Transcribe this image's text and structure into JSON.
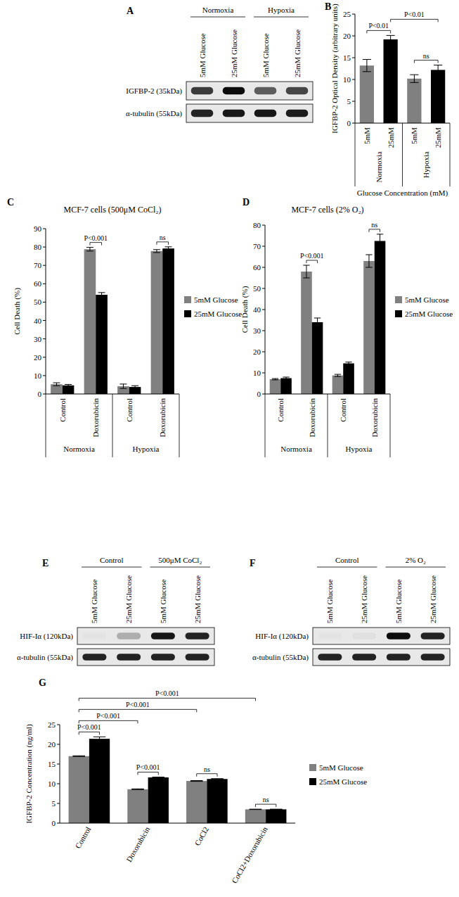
{
  "chart_data": [
    {
      "type": "bar",
      "panel": "B",
      "y_label": "IGFBP-2 Optical Density (arbitrary units)",
      "x_label": "Glucose Concentration (mM)",
      "categories": [
        "5mM",
        "25mM",
        "5mM",
        "25mM"
      ],
      "groups": [
        "Normoxia",
        "Hypoxia"
      ],
      "values": [
        13.2,
        19.2,
        10.2,
        12.2
      ],
      "errors": [
        1.4,
        0.9,
        0.9,
        1.1
      ],
      "colors": [
        "#808080",
        "#000000",
        "#808080",
        "#000000"
      ],
      "ylim": [
        0,
        25
      ],
      "yticks": [
        0,
        5,
        10,
        15,
        20,
        25
      ],
      "grid": false,
      "annotations": [
        {
          "text": "P<0.01",
          "from": [
            0,
            0
          ],
          "to": [
            1,
            0
          ]
        },
        {
          "text": "ns",
          "from": [
            2,
            0
          ],
          "to": [
            3,
            0
          ]
        },
        {
          "text": "P<0.01",
          "from": [
            1,
            0
          ],
          "to": [
            3,
            0
          ]
        }
      ]
    },
    {
      "type": "bar",
      "panel": "C",
      "title": "MCF-7 cells (500μM CoCl₂)",
      "y_label": "Cell Death (%)",
      "categories": [
        "Control",
        "Doxorubicin",
        "Control",
        "Doxorubicin"
      ],
      "groups": [
        "Normoxia",
        "Hypoxia"
      ],
      "series": [
        {
          "name": "5mM Glucose",
          "color": "#808080",
          "values": [
            5.3,
            78.8,
            4.2,
            77.8
          ],
          "errors": [
            0.8,
            1.0,
            1.2,
            0.8
          ]
        },
        {
          "name": "25mM Glucose",
          "color": "#000000",
          "values": [
            4.7,
            54.0,
            3.8,
            79.2
          ],
          "errors": [
            0.5,
            1.2,
            0.7,
            0.9
          ]
        }
      ],
      "ylim": [
        0,
        90
      ],
      "yticks": [
        0,
        10,
        20,
        30,
        40,
        50,
        60,
        70,
        80,
        90
      ],
      "grid": false,
      "legend": "right",
      "annotations": [
        {
          "text": "P<0.001",
          "from": [
            1,
            0
          ],
          "to": [
            1,
            1
          ]
        },
        {
          "text": "ns",
          "from": [
            3,
            0
          ],
          "to": [
            3,
            1
          ]
        }
      ]
    },
    {
      "type": "bar",
      "panel": "D",
      "title": "MCF-7 cells (2% O₂)",
      "y_label": "Cell Death (%)",
      "categories": [
        "Control",
        "Doxorubicin",
        "Control",
        "Doxorubicin"
      ],
      "groups": [
        "Normoxia",
        "Hypoxia"
      ],
      "series": [
        {
          "name": "5mM Glucose",
          "color": "#808080",
          "values": [
            7.0,
            58.0,
            8.8,
            63.0
          ],
          "errors": [
            0.3,
            3.0,
            0.5,
            3.0
          ]
        },
        {
          "name": "25mM Glucose",
          "color": "#000000",
          "values": [
            7.5,
            34.0,
            14.5,
            72.5
          ],
          "errors": [
            0.5,
            2.0,
            0.6,
            3.2
          ]
        }
      ],
      "ylim": [
        0,
        80
      ],
      "yticks": [
        0,
        10,
        20,
        30,
        40,
        50,
        60,
        70,
        80
      ],
      "grid": false,
      "legend": "right",
      "annotations": [
        {
          "text": "P<0.001",
          "from": [
            1,
            0
          ],
          "to": [
            1,
            1
          ]
        },
        {
          "text": "ns",
          "from": [
            3,
            0
          ],
          "to": [
            3,
            1
          ]
        }
      ]
    },
    {
      "type": "bar",
      "panel": "G",
      "y_label": "IGFBP-2 Concentration (ng/ml)",
      "categories": [
        "Control",
        "Doxorubicin",
        "CoCl2",
        "CoCl2+Doxorubicin"
      ],
      "series": [
        {
          "name": "5mM Glucose",
          "color": "#808080",
          "values": [
            17.0,
            8.6,
            10.7,
            3.5
          ],
          "errors": [
            0.1,
            0.1,
            0.1,
            0.05
          ]
        },
        {
          "name": "25mM Glucose",
          "color": "#000000",
          "values": [
            21.4,
            11.6,
            11.2,
            3.5
          ],
          "errors": [
            0.5,
            0.1,
            0.1,
            0.05
          ]
        }
      ],
      "ylim": [
        0,
        25
      ],
      "yticks": [
        0,
        5,
        10,
        15,
        20,
        25
      ],
      "grid": false,
      "legend": "right",
      "annotations": [
        {
          "text": "P<0.001",
          "from": [
            0,
            0
          ],
          "to": [
            0,
            1
          ]
        },
        {
          "text": "P<0.001",
          "from": [
            1,
            0
          ],
          "to": [
            1,
            1
          ]
        },
        {
          "text": "ns",
          "from": [
            2,
            0
          ],
          "to": [
            2,
            1
          ]
        },
        {
          "text": "ns",
          "from": [
            3,
            0
          ],
          "to": [
            3,
            1
          ]
        },
        {
          "text": "P<0.001",
          "from": [
            0,
            0
          ],
          "to": [
            1,
            0
          ]
        },
        {
          "text": "P<0.001",
          "from": [
            0,
            0
          ],
          "to": [
            2,
            0
          ]
        },
        {
          "text": "P<0.001",
          "from": [
            0,
            0
          ],
          "to": [
            3,
            0
          ]
        }
      ]
    }
  ],
  "blots": [
    {
      "panel": "A",
      "groups": [
        "Normoxia",
        "Hypoxia"
      ],
      "lanes": [
        "5mM Glucose",
        "25mM Glucose",
        "5mM Glucose",
        "25mM Glucose"
      ],
      "rows": [
        {
          "label": "IGFBP-2 (35kDa)",
          "bands": [
            0.75,
            0.95,
            0.6,
            0.7
          ]
        },
        {
          "label": "α-tubulin (55kDa)",
          "bands": [
            0.85,
            0.9,
            0.9,
            0.88
          ]
        }
      ]
    },
    {
      "panel": "E",
      "groups": [
        "Control",
        "500μM CoCl₂"
      ],
      "lanes": [
        "5mM Glucose",
        "25mM Glucose",
        "5mM Glucose",
        "25mM Glucose"
      ],
      "rows": [
        {
          "label": "HIF-Iα (120kDa)",
          "bands": [
            0.02,
            0.25,
            0.9,
            0.85
          ]
        },
        {
          "label": "α-tubulin (55kDa)",
          "bands": [
            0.85,
            0.85,
            0.85,
            0.85
          ]
        }
      ]
    },
    {
      "panel": "F",
      "groups": [
        "Control",
        "2% O₂"
      ],
      "lanes": [
        "5mM Glucose",
        "25mM Glucose",
        "5mM Glucose",
        "25mM Glucose"
      ],
      "rows": [
        {
          "label": "HIF-Iα (120kDa)",
          "bands": [
            0.02,
            0.03,
            0.95,
            0.85
          ]
        },
        {
          "label": "α-tubulin (55kDa)",
          "bands": [
            0.85,
            0.85,
            0.85,
            0.85
          ]
        }
      ]
    }
  ]
}
